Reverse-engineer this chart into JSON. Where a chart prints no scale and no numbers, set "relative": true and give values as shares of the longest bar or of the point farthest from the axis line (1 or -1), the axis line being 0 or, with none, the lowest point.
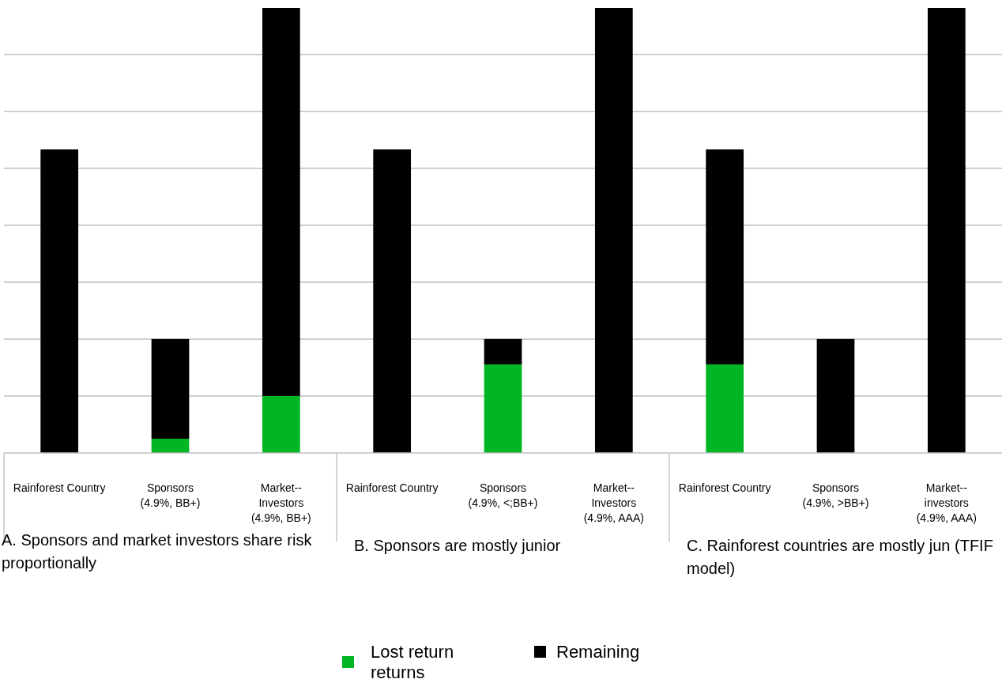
{
  "chart_data": {
    "type": "bar",
    "stacked": true,
    "relative": true,
    "grid": "y",
    "legend": "bottom",
    "categories": [
      "Rainforest Country",
      "Sponsors (4.9%, BB+)",
      "Market--Investors (4.9%, BB+)",
      "Rainforest Country",
      "Sponsors (4.9%, <;BB+)",
      "Market--Investors (4.9%, AAA)",
      "Rainforest Country",
      "Sponsors (4.9%, >BB+)",
      "Market--investors (4.9%, AAA)"
    ],
    "series": [
      {
        "name": "Lost return returns",
        "color": "#00b624",
        "values": [
          0,
          0.032,
          0.128,
          0,
          0.199,
          0,
          0.199,
          0,
          0
        ]
      },
      {
        "name": "Remaining",
        "color": "#000000",
        "values": [
          0.682,
          0.224,
          0.872,
          0.682,
          0.057,
          1,
          0.483,
          0.256,
          1
        ]
      }
    ],
    "annotations": [
      "A. Sponsors and market investors share risk proportionally",
      "B. Sponsors are mostly junior",
      "C. Rainforest countries are mostly jun (TFIF model)"
    ]
  }
}
